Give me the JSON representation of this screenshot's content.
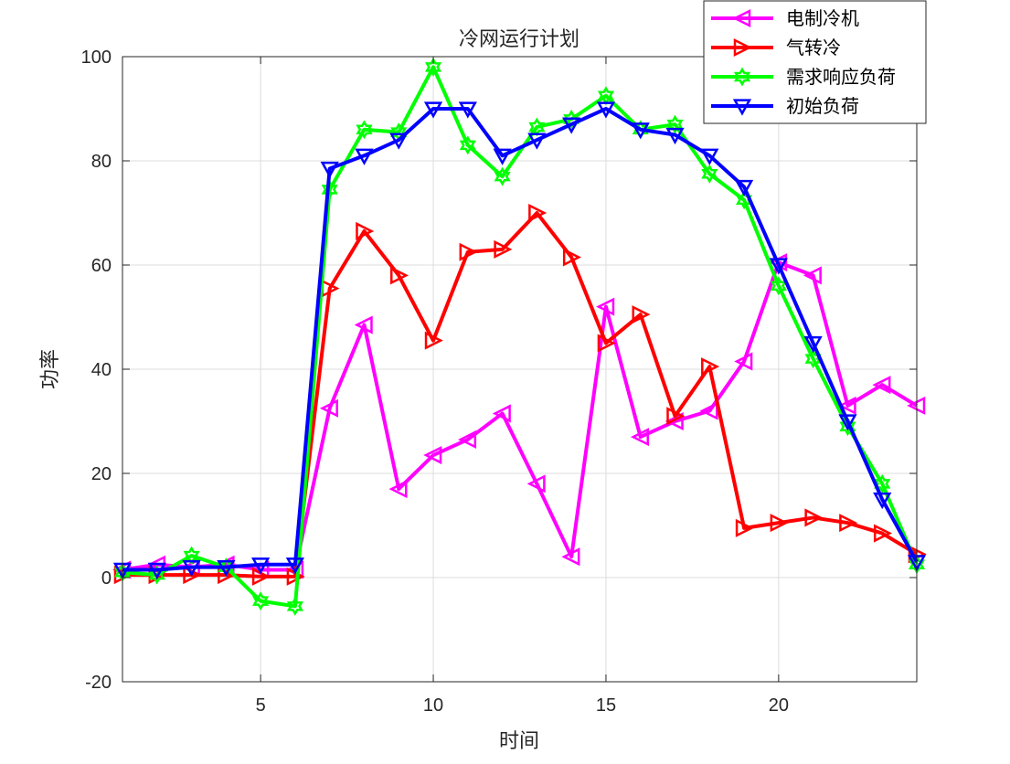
{
  "chart_data": {
    "type": "line",
    "title": "冷网运行计划",
    "xlabel": "时间",
    "ylabel": "功率",
    "xlim": [
      1,
      24
    ],
    "ylim": [
      -20,
      100
    ],
    "xticks": [
      5,
      10,
      15,
      20
    ],
    "yticks": [
      -20,
      0,
      20,
      40,
      60,
      80,
      100
    ],
    "grid": true,
    "legend_position": "top-right",
    "x": [
      1,
      2,
      3,
      4,
      5,
      6,
      7,
      8,
      9,
      10,
      11,
      12,
      13,
      14,
      15,
      16,
      17,
      18,
      19,
      20,
      21,
      22,
      23,
      24
    ],
    "series": [
      {
        "name": "电制冷机",
        "color": "#FF00FF",
        "marker": "triangle-left",
        "values": [
          1.5,
          2.5,
          2.0,
          2.5,
          1.5,
          1.5,
          32.5,
          48.5,
          17.0,
          23.5,
          26.5,
          31.5,
          18.0,
          4.0,
          52.0,
          27.0,
          30.0,
          32.0,
          41.5,
          60.5,
          58.0,
          33.0,
          37.0,
          33.0
        ]
      },
      {
        "name": "气转冷",
        "color": "#FF0000",
        "marker": "triangle-right",
        "values": [
          0.5,
          0.5,
          0.5,
          0.5,
          0.2,
          0.2,
          55.5,
          66.5,
          58.0,
          45.5,
          62.5,
          63.0,
          70.0,
          61.5,
          45.0,
          50.5,
          31.0,
          40.5,
          9.5,
          10.5,
          11.5,
          10.5,
          8.5,
          4.5
        ]
      },
      {
        "name": "需求响应负荷",
        "color": "#00FF00",
        "marker": "hexagram",
        "values": [
          1.0,
          0.5,
          4.2,
          2.0,
          -4.5,
          -5.5,
          74.5,
          86.0,
          85.5,
          98.0,
          83.0,
          77.0,
          86.5,
          88.0,
          92.5,
          86.0,
          87.0,
          77.5,
          72.5,
          56.0,
          42.0,
          29.0,
          18.0,
          2.5
        ]
      },
      {
        "name": "初始负荷",
        "color": "#0000FF",
        "marker": "triangle-down",
        "values": [
          1.5,
          1.5,
          2.0,
          2.0,
          2.5,
          2.5,
          78.5,
          81.0,
          84.0,
          90.0,
          90.0,
          81.0,
          84.0,
          87.0,
          90.0,
          86.0,
          85.0,
          81.0,
          75.0,
          60.0,
          45.0,
          30.0,
          15.0,
          3.0
        ]
      }
    ]
  }
}
